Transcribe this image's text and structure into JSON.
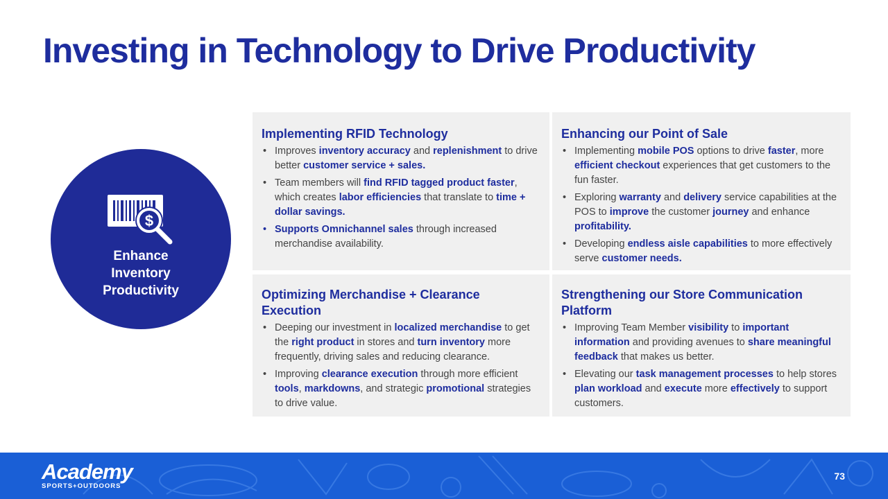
{
  "title": "Investing in Technology to Drive Productivity",
  "circle": {
    "label_lines": [
      "Enhance",
      "Inventory",
      "Productivity"
    ],
    "icon": "barcode-dollar-magnifier-icon"
  },
  "panels": [
    {
      "title": "Implementing RFID Technology",
      "bullets": [
        [
          [
            "Improves ",
            false
          ],
          [
            "inventory accuracy",
            true
          ],
          [
            " and ",
            false
          ],
          [
            "replenishment",
            true
          ],
          [
            " to drive better ",
            false
          ],
          [
            "customer service + sales.",
            true
          ]
        ],
        [
          [
            "Team members will ",
            false
          ],
          [
            "find RFID tagged product faster",
            true
          ],
          [
            ", which creates ",
            false
          ],
          [
            "labor efficiencies",
            true
          ],
          [
            " that translate to ",
            false
          ],
          [
            "time + dollar savings.",
            true
          ]
        ],
        [
          [
            "Supports Omnichannel sales",
            true
          ],
          [
            " through increased merchandise availability.",
            false
          ]
        ]
      ]
    },
    {
      "title": "Enhancing our Point of Sale",
      "bullets": [
        [
          [
            "Implementing ",
            false
          ],
          [
            "mobile POS",
            true
          ],
          [
            " options to drive ",
            false
          ],
          [
            "faster",
            true
          ],
          [
            ", more ",
            false
          ],
          [
            "efficient checkout",
            true
          ],
          [
            " experiences that get customers to the fun faster.",
            false
          ]
        ],
        [
          [
            "Exploring ",
            false
          ],
          [
            "warranty",
            true
          ],
          [
            " and ",
            false
          ],
          [
            "delivery",
            true
          ],
          [
            " service capabilities at the POS to ",
            false
          ],
          [
            "improve",
            true
          ],
          [
            " the customer ",
            false
          ],
          [
            "journey",
            true
          ],
          [
            " and enhance ",
            false
          ],
          [
            "profitability.",
            true
          ]
        ],
        [
          [
            "Developing ",
            false
          ],
          [
            "endless aisle capabilities",
            true
          ],
          [
            " to more effectively serve ",
            false
          ],
          [
            "customer needs.",
            true
          ]
        ]
      ]
    },
    {
      "title": "Optimizing Merchandise + Clearance Execution",
      "bullets": [
        [
          [
            "Deeping our investment in ",
            false
          ],
          [
            "localized merchandise",
            true
          ],
          [
            " to get the ",
            false
          ],
          [
            "right product",
            true
          ],
          [
            " in stores and ",
            false
          ],
          [
            "turn inventory",
            true
          ],
          [
            " more frequently, driving sales and reducing clearance.",
            false
          ]
        ],
        [
          [
            "Improving ",
            false
          ],
          [
            "clearance execution",
            true
          ],
          [
            " through more efficient ",
            false
          ],
          [
            "tools",
            true
          ],
          [
            ", ",
            false
          ],
          [
            "markdowns",
            true
          ],
          [
            ", and strategic ",
            false
          ],
          [
            "promotional",
            true
          ],
          [
            " strategies to drive value.",
            false
          ]
        ]
      ]
    },
    {
      "title": "Strengthening our Store Communication Platform",
      "bullets": [
        [
          [
            "Improving Team Member ",
            false
          ],
          [
            "visibility",
            true
          ],
          [
            " to ",
            false
          ],
          [
            "important information",
            true
          ],
          [
            " and providing avenues to ",
            false
          ],
          [
            "share meaningful feedback",
            true
          ],
          [
            " that makes us better.",
            false
          ]
        ],
        [
          [
            "Elevating our ",
            false
          ],
          [
            "task management processes",
            true
          ],
          [
            " to help stores ",
            false
          ],
          [
            "plan workload",
            true
          ],
          [
            " and ",
            false
          ],
          [
            "execute",
            true
          ],
          [
            " more ",
            false
          ],
          [
            "effectively",
            true
          ],
          [
            " to support customers.",
            false
          ]
        ]
      ]
    }
  ],
  "footer": {
    "logo_main": "Academy",
    "logo_sub": "SPORTS+OUTDOORS",
    "page_number": "73"
  },
  "colors": {
    "brand_navy": "#1e2d9e",
    "circle_navy": "#1f2b97",
    "panel_gray": "#f0f0f0",
    "footer_blue": "#1a5fd6"
  }
}
